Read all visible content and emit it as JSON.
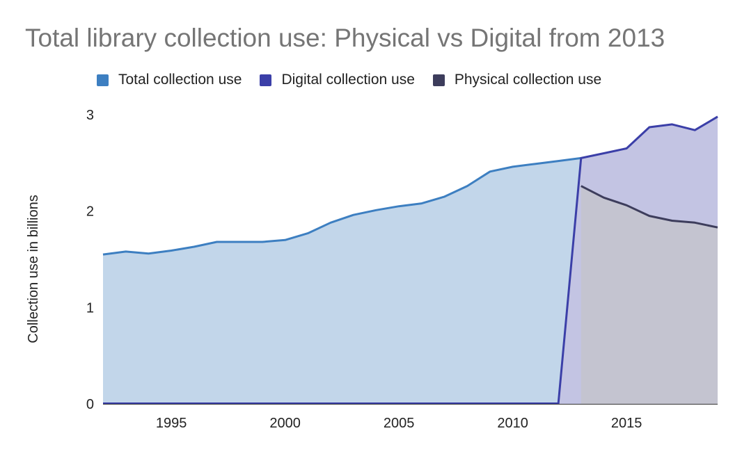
{
  "chart_data": {
    "type": "area",
    "title": "Total library collection use: Physical vs Digital from 2013",
    "xlabel": "",
    "ylabel": "Collection use in billions",
    "xlim": [
      1992,
      2019
    ],
    "ylim": [
      0,
      3
    ],
    "x_ticks": [
      1995,
      2000,
      2005,
      2010,
      2015
    ],
    "y_ticks": [
      0,
      1,
      2,
      3
    ],
    "grid": false,
    "legend": "top",
    "series": [
      {
        "name": "Total collection use",
        "color": "#3d7fc1",
        "fill": "#c2d6ea",
        "x": [
          1992,
          1993,
          1994,
          1995,
          1996,
          1997,
          1998,
          1999,
          2000,
          2001,
          2002,
          2003,
          2004,
          2005,
          2006,
          2007,
          2008,
          2009,
          2010,
          2011,
          2012,
          2013
        ],
        "values": [
          1.55,
          1.58,
          1.56,
          1.59,
          1.63,
          1.68,
          1.68,
          1.68,
          1.7,
          1.77,
          1.88,
          1.96,
          2.01,
          2.05,
          2.08,
          2.15,
          2.26,
          2.41,
          2.46,
          2.49,
          2.52,
          2.55
        ]
      },
      {
        "name": "Digital collection use",
        "color": "#3b3fa8",
        "fill": "#c3c4e3",
        "x": [
          2012,
          2013,
          2014,
          2015,
          2016,
          2017,
          2018,
          2019
        ],
        "values": [
          0,
          2.55,
          2.6,
          2.65,
          2.87,
          2.9,
          2.84,
          2.98
        ]
      },
      {
        "name": "Physical collection use",
        "color": "#3d3d5c",
        "fill": "#c4c4d0",
        "x": [
          2013,
          2014,
          2015,
          2016,
          2017,
          2018,
          2019
        ],
        "values": [
          2.26,
          2.14,
          2.06,
          1.95,
          1.9,
          1.88,
          1.83
        ]
      }
    ]
  }
}
